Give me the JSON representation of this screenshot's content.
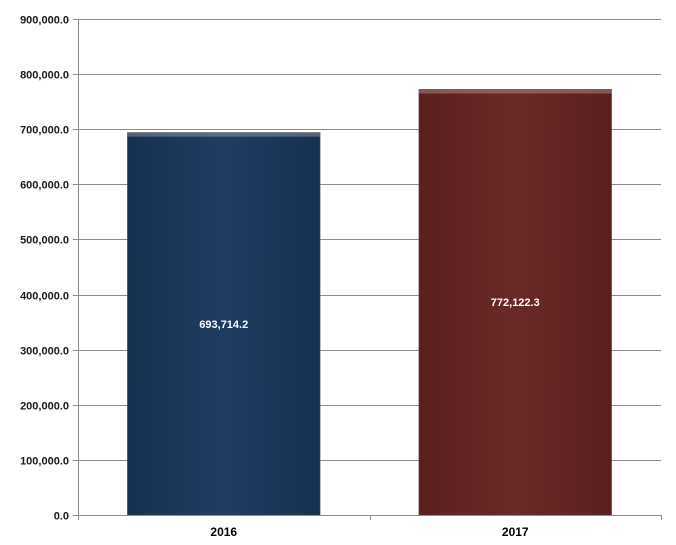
{
  "chart_data": {
    "type": "bar",
    "title": "",
    "xlabel": "",
    "ylabel": "",
    "categories": [
      "2016",
      "2017"
    ],
    "values": [
      693714.2,
      772122.3
    ],
    "data_labels": [
      "693,714.2",
      "772,122.3"
    ],
    "ylim": [
      0,
      900000
    ],
    "yticks": [
      0,
      100000,
      200000,
      300000,
      400000,
      500000,
      600000,
      700000,
      800000,
      900000
    ],
    "ytick_labels": [
      "0.0",
      "100,000.0",
      "200,000.0",
      "300,000.0",
      "400,000.0",
      "500,000.0",
      "600,000.0",
      "700,000.0",
      "800,000.0",
      "900,000.0"
    ],
    "grid": true,
    "legend": "none",
    "bar_colors": [
      "#1f3d63",
      "#6a2a27"
    ]
  }
}
